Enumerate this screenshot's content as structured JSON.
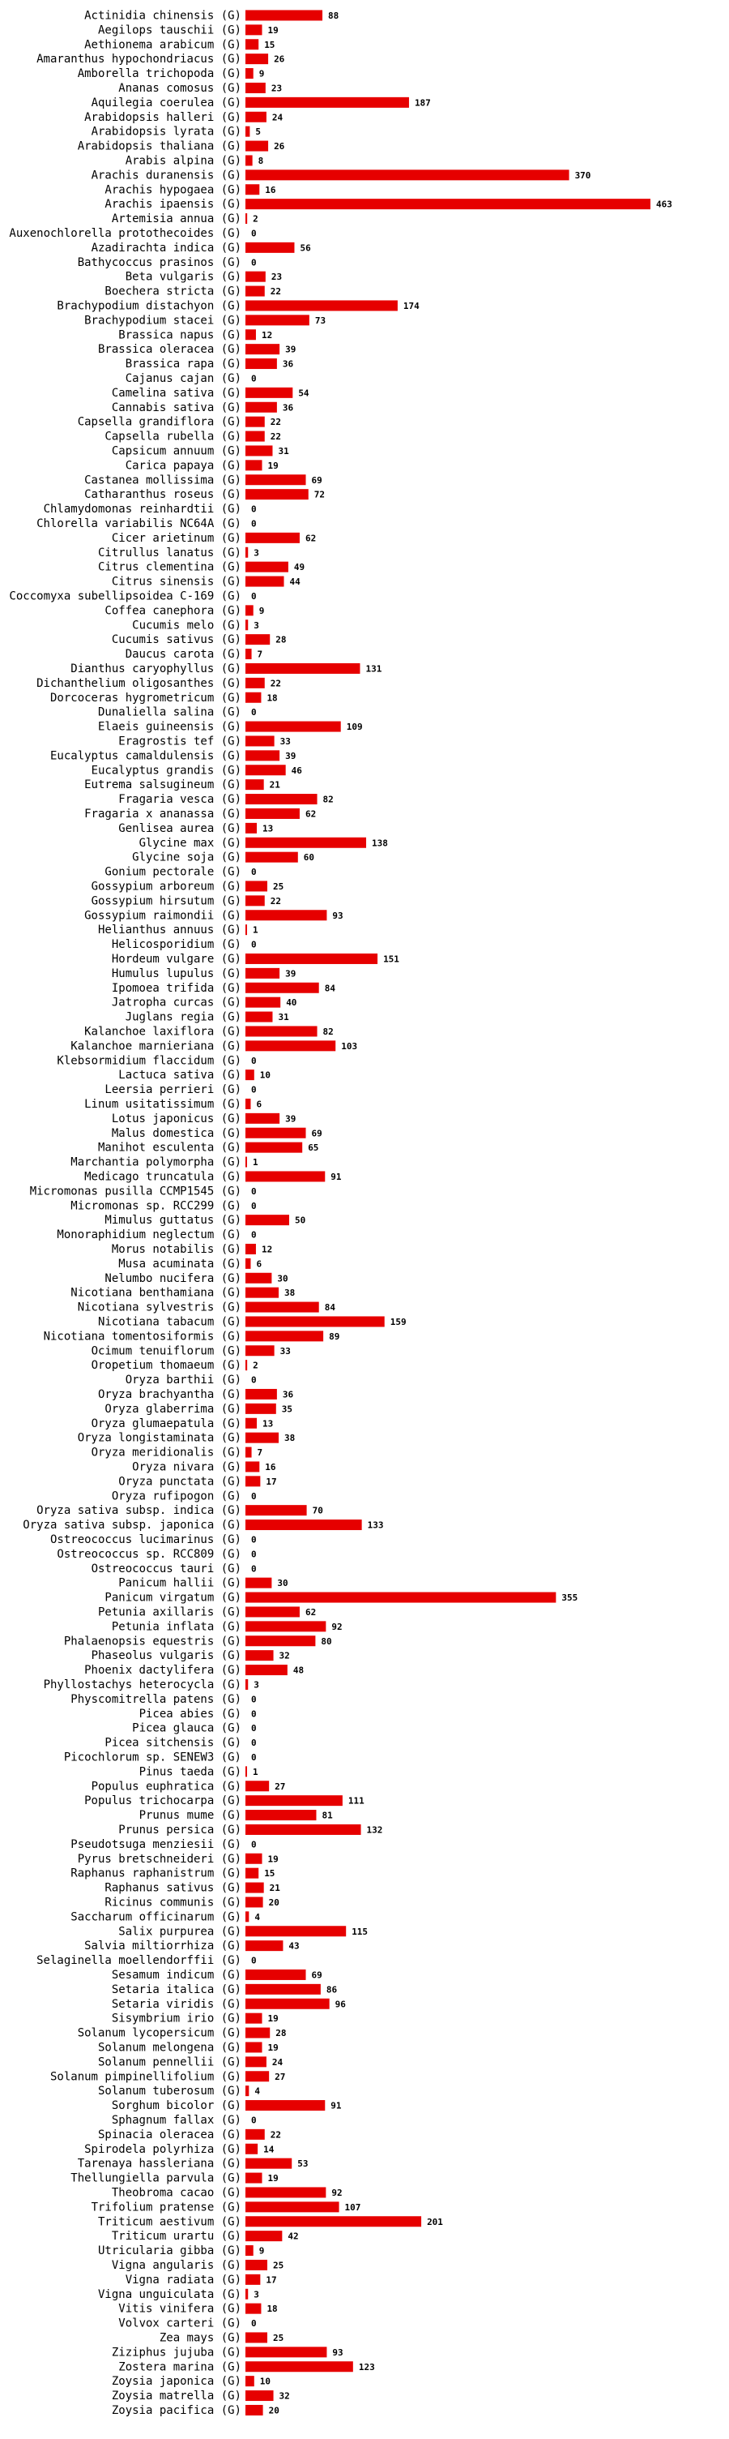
{
  "colors": {
    "bar": "#e60000",
    "text": "#000000",
    "background": "#ffffff"
  },
  "chart_data": {
    "type": "bar",
    "orientation": "horizontal",
    "title": "",
    "xlabel": "",
    "ylabel": "",
    "grid": false,
    "suffix": "(G)",
    "xlim": [
      0,
      463
    ],
    "categories": [
      "Actinidia chinensis",
      "Aegilops tauschii",
      "Aethionema arabicum",
      "Amaranthus hypochondriacus",
      "Amborella trichopoda",
      "Ananas comosus",
      "Aquilegia coerulea",
      "Arabidopsis halleri",
      "Arabidopsis lyrata",
      "Arabidopsis thaliana",
      "Arabis alpina",
      "Arachis duranensis",
      "Arachis hypogaea",
      "Arachis ipaensis",
      "Artemisia annua",
      "Auxenochlorella protothecoides",
      "Azadirachta indica",
      "Bathycoccus prasinos",
      "Beta vulgaris",
      "Boechera stricta",
      "Brachypodium distachyon",
      "Brachypodium stacei",
      "Brassica napus",
      "Brassica oleracea",
      "Brassica rapa",
      "Cajanus cajan",
      "Camelina sativa",
      "Cannabis sativa",
      "Capsella grandiflora",
      "Capsella rubella",
      "Capsicum annuum",
      "Carica papaya",
      "Castanea mollissima",
      "Catharanthus roseus",
      "Chlamydomonas reinhardtii",
      "Chlorella variabilis NC64A",
      "Cicer arietinum",
      "Citrullus lanatus",
      "Citrus clementina",
      "Citrus sinensis",
      "Coccomyxa subellipsoidea C-169",
      "Coffea canephora",
      "Cucumis melo",
      "Cucumis sativus",
      "Daucus carota",
      "Dianthus caryophyllus",
      "Dichanthelium oligosanthes",
      "Dorcoceras hygrometricum",
      "Dunaliella salina",
      "Elaeis guineensis",
      "Eragrostis tef",
      "Eucalyptus camaldulensis",
      "Eucalyptus grandis",
      "Eutrema salsugineum",
      "Fragaria vesca",
      "Fragaria x ananassa",
      "Genlisea aurea",
      "Glycine max",
      "Glycine soja",
      "Gonium pectorale",
      "Gossypium arboreum",
      "Gossypium hirsutum",
      "Gossypium raimondii",
      "Helianthus annuus",
      "Helicosporidium",
      "Hordeum vulgare",
      "Humulus lupulus",
      "Ipomoea trifida",
      "Jatropha curcas",
      "Juglans regia",
      "Kalanchoe laxiflora",
      "Kalanchoe marnieriana",
      "Klebsormidium flaccidum",
      "Lactuca sativa",
      "Leersia perrieri",
      "Linum usitatissimum",
      "Lotus japonicus",
      "Malus domestica",
      "Manihot esculenta",
      "Marchantia polymorpha",
      "Medicago truncatula",
      "Micromonas pusilla CCMP1545",
      "Micromonas sp. RCC299",
      "Mimulus guttatus",
      "Monoraphidium neglectum",
      "Morus notabilis",
      "Musa acuminata",
      "Nelumbo nucifera",
      "Nicotiana benthamiana",
      "Nicotiana sylvestris",
      "Nicotiana tabacum",
      "Nicotiana tomentosiformis",
      "Ocimum tenuiflorum",
      "Oropetium thomaeum",
      "Oryza barthii",
      "Oryza brachyantha",
      "Oryza glaberrima",
      "Oryza glumaepatula",
      "Oryza longistaminata",
      "Oryza meridionalis",
      "Oryza nivara",
      "Oryza punctata",
      "Oryza rufipogon",
      "Oryza sativa subsp. indica",
      "Oryza sativa subsp. japonica",
      "Ostreococcus lucimarinus",
      "Ostreococcus sp. RCC809",
      "Ostreococcus tauri",
      "Panicum hallii",
      "Panicum virgatum",
      "Petunia axillaris",
      "Petunia inflata",
      "Phalaenopsis equestris",
      "Phaseolus vulgaris",
      "Phoenix dactylifera",
      "Phyllostachys heterocycla",
      "Physcomitrella patens",
      "Picea abies",
      "Picea glauca",
      "Picea sitchensis",
      "Picochlorum sp. SENEW3",
      "Pinus taeda",
      "Populus euphratica",
      "Populus trichocarpa",
      "Prunus mume",
      "Prunus persica",
      "Pseudotsuga menziesii",
      "Pyrus bretschneideri",
      "Raphanus raphanistrum",
      "Raphanus sativus",
      "Ricinus communis",
      "Saccharum officinarum",
      "Salix purpurea",
      "Salvia miltiorrhiza",
      "Selaginella moellendorffii",
      "Sesamum indicum",
      "Setaria italica",
      "Setaria viridis",
      "Sisymbrium irio",
      "Solanum lycopersicum",
      "Solanum melongena",
      "Solanum pennellii",
      "Solanum pimpinellifolium",
      "Solanum tuberosum",
      "Sorghum bicolor",
      "Sphagnum fallax",
      "Spinacia oleracea",
      "Spirodela polyrhiza",
      "Tarenaya hassleriana",
      "Thellungiella parvula",
      "Theobroma cacao",
      "Trifolium pratense",
      "Triticum aestivum",
      "Triticum urartu",
      "Utricularia gibba",
      "Vigna angularis",
      "Vigna radiata",
      "Vigna unguiculata",
      "Vitis vinifera",
      "Volvox carteri",
      "Zea mays",
      "Ziziphus jujuba",
      "Zostera marina",
      "Zoysia japonica",
      "Zoysia matrella",
      "Zoysia pacifica"
    ],
    "values": [
      88,
      19,
      15,
      26,
      9,
      23,
      187,
      24,
      5,
      26,
      8,
      370,
      16,
      463,
      2,
      0,
      56,
      0,
      23,
      22,
      174,
      73,
      12,
      39,
      36,
      0,
      54,
      36,
      22,
      22,
      31,
      19,
      69,
      72,
      0,
      0,
      62,
      3,
      49,
      44,
      0,
      9,
      3,
      28,
      7,
      131,
      22,
      18,
      0,
      109,
      33,
      39,
      46,
      21,
      82,
      62,
      13,
      138,
      60,
      0,
      25,
      22,
      93,
      1,
      0,
      151,
      39,
      84,
      40,
      31,
      82,
      103,
      0,
      10,
      0,
      6,
      39,
      69,
      65,
      1,
      91,
      0,
      0,
      50,
      0,
      12,
      6,
      30,
      38,
      84,
      159,
      89,
      33,
      2,
      0,
      36,
      35,
      13,
      38,
      7,
      16,
      17,
      0,
      70,
      133,
      0,
      0,
      0,
      30,
      355,
      62,
      92,
      80,
      32,
      48,
      3,
      0,
      0,
      0,
      0,
      0,
      1,
      27,
      111,
      81,
      132,
      0,
      19,
      15,
      21,
      20,
      4,
      115,
      43,
      0,
      69,
      86,
      96,
      19,
      28,
      19,
      24,
      27,
      4,
      91,
      0,
      22,
      14,
      53,
      19,
      92,
      107,
      201,
      42,
      9,
      25,
      17,
      3,
      18,
      0,
      25,
      93,
      123,
      10,
      32,
      20
    ]
  }
}
